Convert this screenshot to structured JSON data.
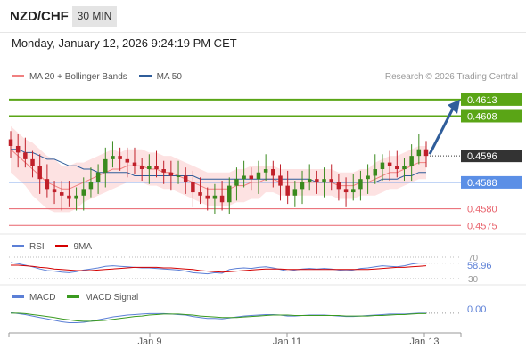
{
  "header": {
    "pair": "NZD/CHF",
    "timeframe": "30 MIN",
    "datetime": "Monday, January 12, 2026 9:24:19 PM CET"
  },
  "legend": {
    "main": [
      {
        "name": "MA 20 + Bollinger Bands",
        "color": "#f08080"
      },
      {
        "name": "MA 50",
        "color": "#2f5d9a"
      }
    ],
    "rsi": [
      {
        "name": "RSI",
        "color": "#5b7fd6"
      },
      {
        "name": "9MA",
        "color": "#d40000"
      }
    ],
    "macd": [
      {
        "name": "MACD",
        "color": "#5b7fd6"
      },
      {
        "name": "MACD Signal",
        "color": "#3a9a20"
      }
    ]
  },
  "credit": "Research © 2026 Trading Central",
  "colors": {
    "up": "#3a8a1e",
    "down": "#c0202a",
    "resistance": "#5aa516",
    "support": "#e8626c",
    "pivot": "#5b8fe6",
    "current": "#333333",
    "arrow": "#2f5d9a",
    "band": "#fde2e2"
  },
  "chart_data": {
    "type": "candlestick",
    "instrument": "NZD/CHF",
    "interval": "30 MIN",
    "x_ticks": [
      "Jan 9",
      "Jan 11",
      "Jan 13"
    ],
    "ylim": [
      0.4574,
      0.4617
    ],
    "levels": [
      {
        "value": 0.4613,
        "label": "0.4613",
        "kind": "resistance"
      },
      {
        "value": 0.4608,
        "label": "0.4608",
        "kind": "resistance"
      },
      {
        "value": 0.4596,
        "label": "0.4596",
        "kind": "current"
      },
      {
        "value": 0.4588,
        "label": "0.4588",
        "kind": "pivot"
      },
      {
        "value": 0.458,
        "label": "0.4580",
        "kind": "support"
      },
      {
        "value": 0.4575,
        "label": "0.4575",
        "kind": "support"
      }
    ],
    "arrow": {
      "from": 0.4596,
      "to": 0.4613,
      "direction": "up"
    },
    "close": [
      0.4599,
      0.4597,
      0.4595,
      0.4593,
      0.4589,
      0.4586,
      0.4585,
      0.4584,
      0.4583,
      0.4584,
      0.4586,
      0.4588,
      0.4591,
      0.4595,
      0.4596,
      0.4595,
      0.4594,
      0.4593,
      0.4592,
      0.4593,
      0.4592,
      0.4591,
      0.459,
      0.459,
      0.4588,
      0.4585,
      0.4584,
      0.4583,
      0.4584,
      0.4582,
      0.4587,
      0.4589,
      0.459,
      0.4589,
      0.4591,
      0.4592,
      0.459,
      0.4587,
      0.4584,
      0.4586,
      0.4588,
      0.4589,
      0.4588,
      0.4589,
      0.4588,
      0.4586,
      0.4585,
      0.4586,
      0.4589,
      0.459,
      0.4592,
      0.4594,
      0.4593,
      0.4592,
      0.4593,
      0.4596,
      0.4598,
      0.4596
    ],
    "ma20": [
      0.4598,
      0.4596,
      0.4594,
      0.4592,
      0.459,
      0.4588,
      0.4587,
      0.4586,
      0.4586,
      0.4587,
      0.4588,
      0.4589,
      0.459,
      0.4591,
      0.4592,
      0.4592,
      0.4593,
      0.4593,
      0.4593,
      0.4592,
      0.4592,
      0.4591,
      0.4591,
      0.459,
      0.4589,
      0.4588,
      0.4587,
      0.4586,
      0.4586,
      0.4586,
      0.4586,
      0.4587,
      0.4587,
      0.4588,
      0.4588,
      0.4589,
      0.4589,
      0.4588,
      0.4588,
      0.4588,
      0.4588,
      0.4588,
      0.4588,
      0.4588,
      0.4588,
      0.4587,
      0.4587,
      0.4587,
      0.4588,
      0.4588,
      0.4589,
      0.459,
      0.4591,
      0.4591,
      0.4592,
      0.4593,
      0.4594,
      0.4594
    ],
    "ma50": [
      0.4598,
      0.4598,
      0.4597,
      0.4597,
      0.4596,
      0.4595,
      0.4595,
      0.4594,
      0.4593,
      0.4593,
      0.4592,
      0.4592,
      0.4591,
      0.4591,
      0.4591,
      0.4591,
      0.4591,
      0.459,
      0.459,
      0.459,
      0.459,
      0.459,
      0.459,
      0.459,
      0.459,
      0.459,
      0.4589,
      0.4589,
      0.4589,
      0.4589,
      0.4589,
      0.4589,
      0.4589,
      0.4589,
      0.4589,
      0.4589,
      0.4589,
      0.4589,
      0.4589,
      0.4589,
      0.4589,
      0.4589,
      0.4588,
      0.4588,
      0.4588,
      0.4588,
      0.4588,
      0.4588,
      0.4588,
      0.4588,
      0.4588,
      0.4589,
      0.4589,
      0.4589,
      0.459,
      0.459,
      0.4591,
      0.4591
    ],
    "band_width": [
      0.0007,
      0.0007,
      0.0007,
      0.0008,
      0.0008,
      0.0008,
      0.0008,
      0.0007,
      0.0007,
      0.0007,
      0.0006,
      0.0006,
      0.0006,
      0.0006,
      0.0006,
      0.0005,
      0.0005,
      0.0005,
      0.0005,
      0.0005,
      0.0005,
      0.0005,
      0.0005,
      0.0005,
      0.0005,
      0.0005,
      0.0005,
      0.0005,
      0.0005,
      0.0005,
      0.0005,
      0.0005,
      0.0005,
      0.0005,
      0.0005,
      0.0004,
      0.0004,
      0.0004,
      0.0004,
      0.0004,
      0.0004,
      0.0004,
      0.0004,
      0.0004,
      0.0004,
      0.0004,
      0.0004,
      0.0004,
      0.0004,
      0.0004,
      0.0005,
      0.0005,
      0.0005,
      0.0005,
      0.0005,
      0.0005,
      0.0005,
      0.0005
    ],
    "rsi": {
      "ylim": [
        25,
        75
      ],
      "levels": [
        70,
        30
      ],
      "level_labels": [
        "70",
        "30"
      ],
      "current": "58.96",
      "rsi": [
        60,
        58,
        55,
        52,
        48,
        45,
        44,
        42,
        41,
        43,
        46,
        48,
        50,
        53,
        54,
        53,
        52,
        51,
        50,
        50,
        49,
        48,
        47,
        46,
        44,
        41,
        40,
        39,
        41,
        40,
        47,
        49,
        50,
        49,
        51,
        52,
        50,
        47,
        44,
        46,
        48,
        49,
        48,
        49,
        48,
        46,
        45,
        46,
        49,
        50,
        52,
        54,
        53,
        52,
        54,
        57,
        59,
        59
      ],
      "ma9": [
        55,
        55,
        54,
        53,
        51,
        50,
        48,
        47,
        46,
        45,
        45,
        45,
        46,
        47,
        48,
        49,
        50,
        51,
        51,
        51,
        51,
        50,
        50,
        49,
        48,
        47,
        45,
        44,
        43,
        42,
        43,
        44,
        45,
        46,
        47,
        48,
        48,
        48,
        47,
        47,
        47,
        47,
        47,
        47,
        47,
        47,
        47,
        47,
        47,
        47,
        48,
        49,
        50,
        51,
        51,
        52,
        53,
        54
      ]
    },
    "macd": {
      "ylim": [
        -0.0003,
        0.0003
      ],
      "zero_label": "0.00",
      "macd": [
        5e-05,
        3e-05,
        1e-05,
        -2e-05,
        -5e-05,
        -8e-05,
        -0.00011,
        -0.00014,
        -0.00016,
        -0.00016,
        -0.00015,
        -0.00013,
        -0.0001,
        -7e-05,
        -4e-05,
        -2e-05,
        0.0,
        1e-05,
        2e-05,
        3e-05,
        3e-05,
        3e-05,
        2e-05,
        1e-05,
        0.0,
        -3e-05,
        -5e-05,
        -7e-05,
        -7e-05,
        -8e-05,
        -6e-05,
        -4e-05,
        -2e-05,
        -1e-05,
        0.0,
        1e-05,
        1e-05,
        0.0,
        -2e-05,
        -2e-05,
        -1e-05,
        0.0,
        0.0,
        0.0,
        -1e-05,
        -2e-05,
        -3e-05,
        -3e-05,
        -2e-05,
        -1e-05,
        0.0,
        1e-05,
        2e-05,
        2e-05,
        2e-05,
        3e-05,
        4e-05,
        4e-05
      ],
      "signal": [
        4e-05,
        4e-05,
        3e-05,
        1e-05,
        -1e-05,
        -3e-05,
        -5e-05,
        -8e-05,
        -0.0001,
        -0.00012,
        -0.00013,
        -0.00013,
        -0.00012,
        -0.00011,
        -9e-05,
        -7e-05,
        -5e-05,
        -3e-05,
        -2e-05,
        0.0,
        1e-05,
        2e-05,
        2e-05,
        2e-05,
        1e-05,
        0.0,
        -2e-05,
        -3e-05,
        -4e-05,
        -5e-05,
        -5e-05,
        -5e-05,
        -4e-05,
        -3e-05,
        -2e-05,
        -1e-05,
        0.0,
        0.0,
        0.0,
        -1e-05,
        -1e-05,
        -1e-05,
        -1e-05,
        -1e-05,
        -1e-05,
        -1e-05,
        -2e-05,
        -2e-05,
        -2e-05,
        -2e-05,
        -1e-05,
        -1e-05,
        0.0,
        1e-05,
        1e-05,
        2e-05,
        3e-05,
        3e-05
      ]
    }
  }
}
